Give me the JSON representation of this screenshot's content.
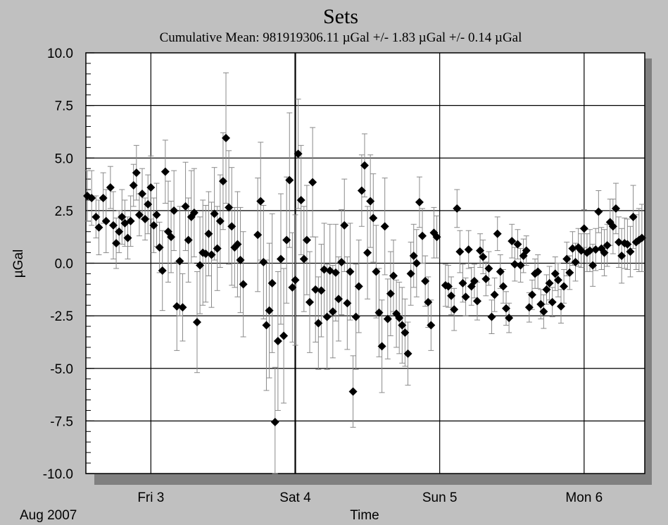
{
  "chart_data": {
    "type": "scatter",
    "title": "Sets",
    "subtitle": "Cumulative Mean:  981919306.11 µGal   +/- 1.83 µGal   +/-  0.14 µGal",
    "xlabel": "Time",
    "ylabel": "µGal",
    "date_label": "Aug 2007",
    "x_unit": "day of Aug 2007",
    "xlim": [
      2.55,
      6.42
    ],
    "ylim": [
      -10,
      10
    ],
    "y_ticks": [
      "10.0",
      "7.5",
      "5.0",
      "2.5",
      "0.0",
      "-2.5",
      "-5.0",
      "-7.5",
      "-10.0"
    ],
    "y_tick_values": [
      10,
      7.5,
      5,
      2.5,
      0,
      -2.5,
      -5,
      -7.5,
      -10
    ],
    "x_ticks": [
      "Fri 3",
      "Sat 4",
      "Sun 5",
      "Mon 6"
    ],
    "x_tick_values": [
      3,
      4,
      5,
      6
    ],
    "grid": true,
    "legend": "none",
    "marker": "diamond",
    "marker_color": "#000000",
    "errorbar_color": "#8a8a8a",
    "series": [
      {
        "points": [
          [
            2.56,
            3.2,
            1.2
          ],
          [
            2.59,
            3.1,
            1.3
          ],
          [
            2.62,
            2.2,
            1.0
          ],
          [
            2.64,
            1.7,
            1.3
          ],
          [
            2.67,
            3.1,
            1.2
          ],
          [
            2.69,
            2.0,
            1.5
          ],
          [
            2.72,
            3.6,
            1.0
          ],
          [
            2.74,
            1.8,
            1.6
          ],
          [
            2.76,
            0.95,
            1.2
          ],
          [
            2.78,
            1.5,
            1.0
          ],
          [
            2.8,
            2.2,
            1.3
          ],
          [
            2.82,
            1.9,
            1.1
          ],
          [
            2.84,
            1.2,
            1.0
          ],
          [
            2.86,
            2.0,
            1.2
          ],
          [
            2.88,
            3.7,
            1.0
          ],
          [
            2.9,
            4.3,
            1.3
          ],
          [
            2.92,
            2.3,
            1.0
          ],
          [
            2.94,
            3.3,
            1.2
          ],
          [
            2.96,
            2.1,
            1.0
          ],
          [
            2.98,
            2.8,
            1.4
          ],
          [
            3.0,
            3.6,
            1.5
          ],
          [
            3.02,
            1.8,
            1.3
          ],
          [
            3.04,
            2.3,
            1.5
          ],
          [
            3.06,
            0.75,
            1.2
          ],
          [
            3.08,
            -0.35,
            1.9
          ],
          [
            3.1,
            4.35,
            1.5
          ],
          [
            3.12,
            1.5,
            2.4
          ],
          [
            3.14,
            1.25,
            1.7
          ],
          [
            3.16,
            2.5,
            1.9
          ],
          [
            3.18,
            -2.05,
            2.1
          ],
          [
            3.2,
            0.1,
            2.6
          ],
          [
            3.22,
            -2.1,
            1.6
          ],
          [
            3.24,
            2.7,
            2.1
          ],
          [
            3.26,
            1.1,
            2.0
          ],
          [
            3.28,
            2.2,
            2.2
          ],
          [
            3.3,
            2.4,
            2.1
          ],
          [
            3.32,
            -2.8,
            2.4
          ],
          [
            3.34,
            -0.1,
            2.3
          ],
          [
            3.36,
            0.5,
            2.5
          ],
          [
            3.38,
            0.45,
            2.3
          ],
          [
            3.4,
            1.4,
            2.0
          ],
          [
            3.42,
            0.4,
            2.5
          ],
          [
            3.44,
            2.35,
            2.2
          ],
          [
            3.46,
            0.7,
            2.0
          ],
          [
            3.48,
            2.0,
            2.2
          ],
          [
            3.5,
            3.9,
            2.3
          ],
          [
            3.52,
            5.95,
            3.1
          ],
          [
            3.54,
            2.65,
            2.7
          ],
          [
            3.56,
            1.75,
            2.8
          ],
          [
            3.58,
            0.75,
            1.9
          ],
          [
            3.6,
            0.9,
            2.5
          ],
          [
            3.62,
            0.15,
            2.5
          ],
          [
            3.64,
            -1.0,
            2.5
          ],
          [
            3.74,
            1.35,
            2.7
          ],
          [
            3.76,
            2.95,
            2.8
          ],
          [
            3.78,
            0.05,
            2.7
          ],
          [
            3.8,
            -2.95,
            3.1
          ],
          [
            3.82,
            -2.25,
            3.2
          ],
          [
            3.84,
            -0.95,
            3.3
          ],
          [
            3.86,
            -7.55,
            2.6
          ],
          [
            3.88,
            -3.7,
            3.3
          ],
          [
            3.9,
            0.2,
            3.1
          ],
          [
            3.92,
            -3.45,
            3.2
          ],
          [
            3.94,
            1.1,
            3.0
          ],
          [
            3.96,
            3.95,
            3.2
          ],
          [
            3.98,
            -1.15,
            2.6
          ],
          [
            4.0,
            -0.8,
            3.1
          ],
          [
            4.02,
            5.2,
            2.6
          ],
          [
            4.04,
            3.0,
            2.6
          ],
          [
            4.06,
            0.2,
            2.5
          ],
          [
            4.08,
            1.1,
            2.6
          ],
          [
            4.1,
            -1.85,
            2.4
          ],
          [
            4.12,
            3.85,
            2.6
          ],
          [
            4.14,
            -1.25,
            2.5
          ],
          [
            4.16,
            -2.85,
            2.2
          ],
          [
            4.18,
            -1.3,
            2.2
          ],
          [
            4.2,
            -0.3,
            2.2
          ],
          [
            4.22,
            -2.55,
            2.5
          ],
          [
            4.24,
            -0.35,
            2.2
          ],
          [
            4.26,
            -2.3,
            2.2
          ],
          [
            4.28,
            -0.45,
            2.3
          ],
          [
            4.3,
            -1.7,
            2.0
          ],
          [
            4.32,
            0.05,
            2.5
          ],
          [
            4.34,
            1.8,
            2.2
          ],
          [
            4.36,
            -1.9,
            2.2
          ],
          [
            4.38,
            -0.4,
            2.3
          ],
          [
            4.4,
            -6.1,
            1.7
          ],
          [
            4.42,
            -2.55,
            2.5
          ],
          [
            4.44,
            -1.1,
            2.2
          ],
          [
            4.46,
            3.45,
            1.7
          ],
          [
            4.48,
            4.65,
            1.5
          ],
          [
            4.5,
            0.5,
            2.2
          ],
          [
            4.52,
            2.95,
            2.2
          ],
          [
            4.54,
            2.15,
            2.1
          ],
          [
            4.56,
            -0.4,
            2.2
          ],
          [
            4.58,
            -2.35,
            2.1
          ],
          [
            4.6,
            -3.95,
            2.2
          ],
          [
            4.62,
            1.75,
            2.3
          ],
          [
            4.64,
            -2.65,
            1.9
          ],
          [
            4.66,
            -1.45,
            2.0
          ],
          [
            4.68,
            -0.6,
            1.7
          ],
          [
            4.7,
            -2.4,
            1.6
          ],
          [
            4.72,
            -2.6,
            1.7
          ],
          [
            4.74,
            -2.95,
            1.8
          ],
          [
            4.76,
            -3.3,
            1.6
          ],
          [
            4.78,
            -4.3,
            1.5
          ],
          [
            4.8,
            -0.5,
            1.5
          ],
          [
            4.82,
            0.35,
            1.5
          ],
          [
            4.84,
            0.0,
            1.6
          ],
          [
            4.86,
            2.9,
            1.2
          ],
          [
            4.88,
            1.3,
            1.3
          ],
          [
            4.9,
            -0.85,
            1.2
          ],
          [
            4.92,
            -1.85,
            1.2
          ],
          [
            4.94,
            -2.95,
            1.2
          ],
          [
            4.96,
            1.45,
            1.2
          ],
          [
            4.98,
            1.25,
            1.0
          ],
          [
            5.04,
            -1.05,
            1.0
          ],
          [
            5.06,
            -1.1,
            1.0
          ],
          [
            5.08,
            -1.55,
            0.9
          ],
          [
            5.1,
            -2.2,
            1.0
          ],
          [
            5.12,
            2.6,
            0.9
          ],
          [
            5.14,
            0.55,
            1.0
          ],
          [
            5.16,
            -0.95,
            0.9
          ],
          [
            5.18,
            -1.6,
            0.9
          ],
          [
            5.2,
            0.65,
            0.9
          ],
          [
            5.22,
            -1.1,
            0.9
          ],
          [
            5.24,
            -0.85,
            0.8
          ],
          [
            5.26,
            -1.8,
            0.9
          ],
          [
            5.28,
            0.6,
            0.8
          ],
          [
            5.3,
            0.3,
            0.8
          ],
          [
            5.32,
            -0.75,
            0.8
          ],
          [
            5.34,
            -0.25,
            0.8
          ],
          [
            5.36,
            -2.55,
            0.8
          ],
          [
            5.38,
            -1.5,
            0.8
          ],
          [
            5.4,
            1.4,
            0.8
          ],
          [
            5.42,
            -0.4,
            0.8
          ],
          [
            5.44,
            -1.1,
            0.8
          ],
          [
            5.46,
            -2.15,
            0.8
          ],
          [
            5.48,
            -2.6,
            0.7
          ],
          [
            5.5,
            1.05,
            0.8
          ],
          [
            5.52,
            -0.05,
            0.8
          ],
          [
            5.54,
            0.9,
            0.7
          ],
          [
            5.56,
            -0.1,
            0.8
          ],
          [
            5.58,
            0.35,
            0.8
          ],
          [
            5.6,
            0.6,
            0.7
          ],
          [
            5.62,
            -2.1,
            0.7
          ],
          [
            5.64,
            -1.5,
            0.7
          ],
          [
            5.66,
            -0.5,
            0.7
          ],
          [
            5.68,
            -0.4,
            0.8
          ],
          [
            5.7,
            -1.95,
            0.7
          ],
          [
            5.72,
            -2.3,
            0.8
          ],
          [
            5.74,
            -1.25,
            0.7
          ],
          [
            5.76,
            -0.95,
            0.8
          ],
          [
            5.78,
            -1.85,
            0.7
          ],
          [
            5.8,
            -0.5,
            0.8
          ],
          [
            5.82,
            -0.8,
            0.8
          ],
          [
            5.84,
            -2.05,
            0.8
          ],
          [
            5.86,
            -1.1,
            0.8
          ],
          [
            5.88,
            0.2,
            0.8
          ],
          [
            5.9,
            -0.45,
            0.8
          ],
          [
            5.92,
            0.7,
            0.8
          ],
          [
            5.94,
            0.05,
            0.9
          ],
          [
            5.96,
            0.75,
            0.9
          ],
          [
            5.98,
            0.6,
            0.8
          ],
          [
            6.0,
            1.65,
            0.9
          ],
          [
            6.02,
            0.5,
            0.9
          ],
          [
            6.04,
            0.6,
            1.0
          ],
          [
            6.06,
            -0.1,
            1.0
          ],
          [
            6.08,
            0.65,
            1.0
          ],
          [
            6.1,
            2.45,
            1.0
          ],
          [
            6.12,
            0.7,
            1.0
          ],
          [
            6.14,
            0.5,
            1.1
          ],
          [
            6.16,
            0.85,
            1.0
          ],
          [
            6.18,
            1.95,
            1.1
          ],
          [
            6.2,
            1.75,
            1.3
          ],
          [
            6.22,
            2.6,
            1.2
          ],
          [
            6.24,
            1.0,
            1.2
          ],
          [
            6.26,
            0.35,
            1.3
          ],
          [
            6.28,
            0.95,
            1.2
          ],
          [
            6.3,
            0.9,
            1.2
          ],
          [
            6.32,
            0.55,
            1.2
          ],
          [
            6.34,
            2.2,
            1.5
          ],
          [
            6.36,
            1.0,
            1.3
          ],
          [
            6.38,
            1.1,
            1.5
          ],
          [
            6.4,
            1.2,
            1.6
          ]
        ]
      }
    ]
  }
}
